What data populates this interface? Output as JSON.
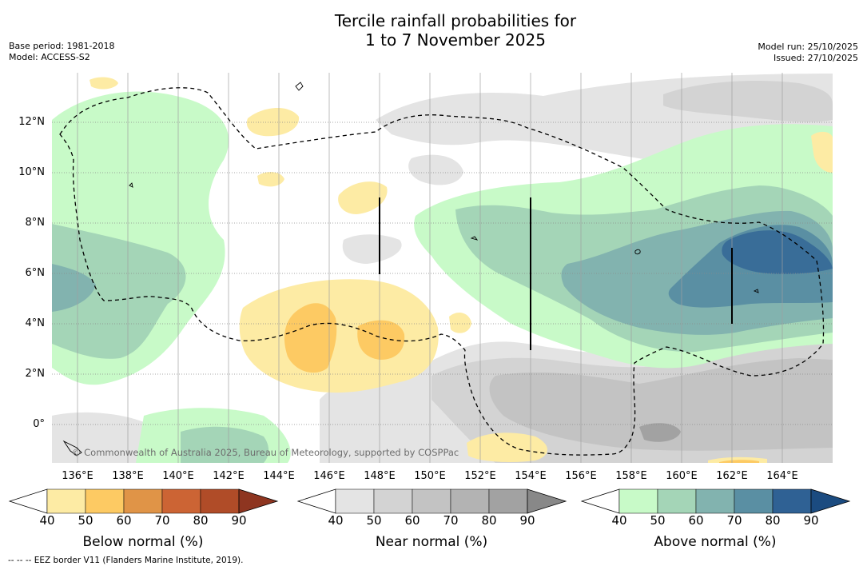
{
  "title": {
    "line1": "Tercile rainfall probabilities for",
    "line2": "1 to 7 November 2025"
  },
  "meta_left": {
    "base_period": "Base period: 1981-2018",
    "model": "Model: ACCESS-S2"
  },
  "meta_right": {
    "model_run": "Model run: 25/10/2025",
    "issued": "Issued: 27/10/2025"
  },
  "map": {
    "lat_labels": [
      "12°N",
      "10°N",
      "8°N",
      "6°N",
      "4°N",
      "2°N",
      "0°"
    ],
    "lon_labels": [
      "136°E",
      "138°E",
      "140°E",
      "142°E",
      "144°E",
      "146°E",
      "148°E",
      "150°E",
      "152°E",
      "154°E",
      "156°E",
      "158°E",
      "160°E",
      "162°E",
      "164°E"
    ],
    "copyright": "© Commonwealth of Australia 2025, Bureau of Meteorology, supported by COSPPac",
    "lon_range": [
      134.9,
      165.9
    ],
    "lat_range": [
      -1.5,
      14
    ]
  },
  "legend": {
    "below": {
      "title": "Below normal (%)",
      "ticks": [
        "40",
        "50",
        "60",
        "70",
        "80",
        "90"
      ],
      "colors": [
        "#ffffff",
        "#fdeba4",
        "#fdca63",
        "#e09447",
        "#cc6434",
        "#b04c28",
        "#8e3520"
      ]
    },
    "near": {
      "title": "Near normal (%)",
      "ticks": [
        "40",
        "50",
        "60",
        "70",
        "80",
        "90"
      ],
      "colors": [
        "#ffffff",
        "#e4e4e4",
        "#d3d3d3",
        "#c3c3c3",
        "#b3b3b3",
        "#a2a2a2",
        "#888888"
      ]
    },
    "above": {
      "title": "Above normal (%)",
      "ticks": [
        "40",
        "50",
        "60",
        "70",
        "80",
        "90"
      ],
      "colors": [
        "#ffffff",
        "#c8fac8",
        "#a4d5b7",
        "#82b3af",
        "#5a8fa3",
        "#2f6194",
        "#1b4b80"
      ]
    }
  },
  "footnote": "--  --  -- EEZ border V11 (Flanders Marine Institute, 2019)."
}
